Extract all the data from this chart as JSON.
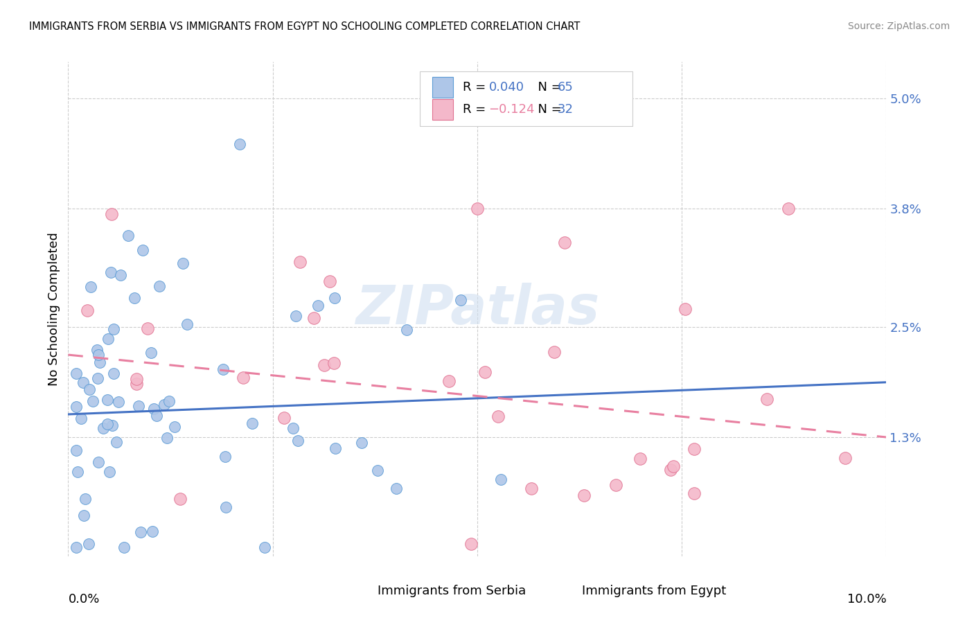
{
  "title": "IMMIGRANTS FROM SERBIA VS IMMIGRANTS FROM EGYPT NO SCHOOLING COMPLETED CORRELATION CHART",
  "source": "Source: ZipAtlas.com",
  "ylabel": "No Schooling Completed",
  "right_ytick_vals": [
    0.013,
    0.025,
    0.038,
    0.05
  ],
  "right_ytick_labels": [
    "1.3%",
    "2.5%",
    "3.8%",
    "5.0%"
  ],
  "xlim": [
    0,
    0.1
  ],
  "ylim": [
    0,
    0.054
  ],
  "serbia_color": "#aec6e8",
  "serbia_edge_color": "#5b9bd5",
  "egypt_color": "#f4b8ca",
  "egypt_edge_color": "#e07090",
  "serbia_line_color": "#4472c4",
  "egypt_line_color": "#e87fa0",
  "watermark_color": "#d0dff0",
  "legend_text_color": "#4472c4",
  "legend_neg_color": "#e87fa0",
  "grid_color": "#cccccc",
  "serbia_R": 0.04,
  "serbia_N": 65,
  "egypt_R": -0.124,
  "egypt_N": 32,
  "serbia_line_start_y": 0.0155,
  "serbia_line_end_y": 0.019,
  "egypt_line_start_y": 0.022,
  "egypt_line_end_y": 0.013
}
